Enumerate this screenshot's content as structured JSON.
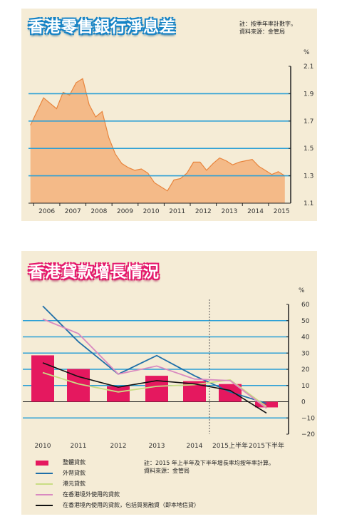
{
  "colors": {
    "panel_bg": "#f5ecd6",
    "grid_blue": "#2a9fd6",
    "area_fill": "#f3b27a",
    "area_line": "#e8843c",
    "bar": "#e5185f",
    "foreign": "#1f6fa8",
    "hkd": "#c9dd84",
    "outside": "#d98ac0",
    "inside": "#111111"
  },
  "chart1": {
    "title": "香港零售銀行淨息差",
    "note_lines": [
      "註：按季年率計數字。",
      "資料來源：金管局"
    ],
    "unit": "%",
    "chart_data": {
      "type": "area",
      "x_ticks": [
        "2006",
        "2007",
        "2008",
        "2009",
        "2010",
        "2011",
        "2012",
        "2013",
        "2014",
        "2015"
      ],
      "y_ticks": [
        "2.1",
        "1.9",
        "1.7",
        "1.5",
        "1.3",
        "1.1"
      ],
      "ylim": [
        1.1,
        2.1
      ],
      "xlim": [
        2005.8,
        2015.85
      ],
      "gridlines": [
        1.9,
        1.7,
        1.5,
        1.3
      ],
      "x": [
        2005.875,
        2006.125,
        2006.375,
        2006.625,
        2006.875,
        2007.125,
        2007.375,
        2007.625,
        2007.875,
        2008.125,
        2008.375,
        2008.625,
        2008.875,
        2009.125,
        2009.375,
        2009.625,
        2009.875,
        2010.125,
        2010.375,
        2010.625,
        2010.875,
        2011.125,
        2011.375,
        2011.625,
        2011.875,
        2012.125,
        2012.375,
        2012.625,
        2012.875,
        2013.125,
        2013.375,
        2013.625,
        2013.875,
        2014.125,
        2014.375,
        2014.625,
        2014.875,
        2015.125,
        2015.375,
        2015.625
      ],
      "values": [
        1.67,
        1.77,
        1.87,
        1.83,
        1.79,
        1.91,
        1.89,
        1.98,
        2.01,
        1.82,
        1.73,
        1.77,
        1.58,
        1.46,
        1.39,
        1.36,
        1.34,
        1.35,
        1.32,
        1.25,
        1.22,
        1.19,
        1.27,
        1.28,
        1.32,
        1.4,
        1.4,
        1.34,
        1.39,
        1.43,
        1.41,
        1.38,
        1.4,
        1.41,
        1.42,
        1.37,
        1.34,
        1.31,
        1.33,
        1.3
      ]
    }
  },
  "chart2": {
    "title": "香港貸款增長情況",
    "unit": "%",
    "note_lines": [
      "註：2015 年上半年及下半年增長率均按年率計算。",
      "資料來源：金管局"
    ],
    "chart_data": {
      "type": "bar",
      "categories": [
        "2010",
        "2011",
        "2012",
        "2013",
        "2014",
        "2015上半年",
        "2015下半年"
      ],
      "ylim": [
        -20,
        60
      ],
      "y_ticks": [
        "60",
        "50",
        "40",
        "30",
        "20",
        "10",
        "0",
        "−10",
        "−20"
      ],
      "series": [
        {
          "name": "整體貸款",
          "kind": "bar",
          "values": [
            28.6,
            20.2,
            9.6,
            16.0,
            12.7,
            10.9,
            -3.5
          ]
        },
        {
          "name": "外幣貸款",
          "kind": "line",
          "values": [
            59.0,
            37.0,
            17.0,
            28.5,
            16.0,
            6.0,
            -1.0
          ]
        },
        {
          "name": "港元貸款",
          "kind": "line",
          "values": [
            18.0,
            11.0,
            6.0,
            9.5,
            10.5,
            13.5,
            -3.0
          ]
        },
        {
          "name": "在香港境外使用的貸款",
          "kind": "line",
          "values": [
            51.0,
            42.0,
            17.0,
            22.0,
            14.0,
            13.0,
            -4.0
          ]
        },
        {
          "name": "在香港境內使用的貸款，包括貿易融資（即本地信貸）",
          "kind": "line",
          "values": [
            24.0,
            15.5,
            9.0,
            13.0,
            11.0,
            7.0,
            -7.0
          ]
        }
      ]
    }
  }
}
